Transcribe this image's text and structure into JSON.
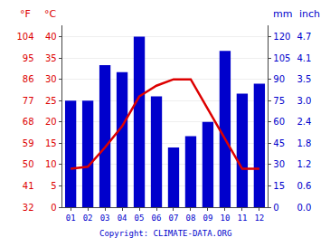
{
  "chart_data": {
    "type": "bar",
    "categories": [
      "01",
      "02",
      "03",
      "04",
      "05",
      "06",
      "07",
      "08",
      "09",
      "10",
      "11",
      "12"
    ],
    "series": [
      {
        "type": "bar",
        "color": "#0000cc",
        "values": [
          75,
          75,
          100,
          95,
          120,
          78,
          42,
          50,
          60,
          110,
          80,
          87
        ]
      },
      {
        "type": "line",
        "axis": "y2",
        "color": "#dd0000",
        "values": [
          9,
          9.5,
          14,
          19,
          26,
          28.5,
          30,
          30,
          23,
          16,
          9,
          9
        ]
      }
    ],
    "ylabel": "mm",
    "ylim": [
      0,
      128
    ],
    "yticks": [
      0,
      15,
      30,
      45,
      60,
      75,
      90,
      105,
      120
    ],
    "y2label": "°C",
    "y2lim": [
      0,
      42.67
    ],
    "y2ticks": [
      0,
      5,
      10,
      15,
      20,
      25,
      30,
      35,
      40
    ],
    "y3label": "°F",
    "y3ticks": [
      {
        "value": 0,
        "label": "32"
      },
      {
        "value": 5,
        "label": "41"
      },
      {
        "value": 10,
        "label": "50"
      },
      {
        "value": 15,
        "label": "59"
      },
      {
        "value": 20,
        "label": "68"
      },
      {
        "value": 25,
        "label": "77"
      },
      {
        "value": 30,
        "label": "86"
      },
      {
        "value": 35,
        "label": "95"
      },
      {
        "value": 40,
        "label": "104"
      }
    ],
    "y4label": "inch",
    "y4ticks": [
      {
        "value": 0,
        "label": "0.0"
      },
      {
        "value": 15,
        "label": "0.6"
      },
      {
        "value": 30,
        "label": "1.2"
      },
      {
        "value": 45,
        "label": "1.8"
      },
      {
        "value": 60,
        "label": "2.4"
      },
      {
        "value": 75,
        "label": "3.0"
      },
      {
        "value": 90,
        "label": "3.5"
      },
      {
        "value": 105,
        "label": "4.1"
      },
      {
        "value": 120,
        "label": "4.7"
      }
    ],
    "annotations": [
      "Copyright: CLIMATE-DATA.ORG"
    ],
    "grid": true
  }
}
